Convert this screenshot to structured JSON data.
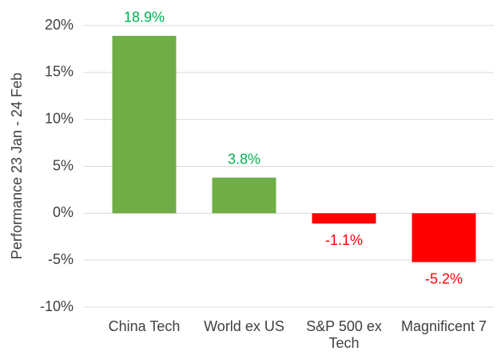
{
  "chart_data": {
    "type": "bar",
    "y_axis_label": "Performance 23 Jan - 24 Feb",
    "categories": [
      "China Tech",
      "World ex US",
      "S&P 500 ex Tech",
      "Magnificent 7"
    ],
    "values": [
      18.9,
      3.8,
      -1.1,
      -5.2
    ],
    "value_labels": [
      "18.9%",
      "3.8%",
      "-1.1%",
      "-5.2%"
    ],
    "colors": [
      "#70ad47",
      "#70ad47",
      "#ff0000",
      "#ff0000"
    ],
    "value_label_colors": [
      "#00b050",
      "#00b050",
      "#ff0000",
      "#ff0000"
    ],
    "ylim": [
      -10,
      20
    ],
    "yticks": [
      {
        "value": -10,
        "label": "-10%"
      },
      {
        "value": -5,
        "label": "-5%"
      },
      {
        "value": 0,
        "label": "0%"
      },
      {
        "value": 5,
        "label": "5%"
      },
      {
        "value": 10,
        "label": "10%"
      },
      {
        "value": 15,
        "label": "15%"
      },
      {
        "value": 20,
        "label": "20%"
      }
    ],
    "grid": true
  }
}
